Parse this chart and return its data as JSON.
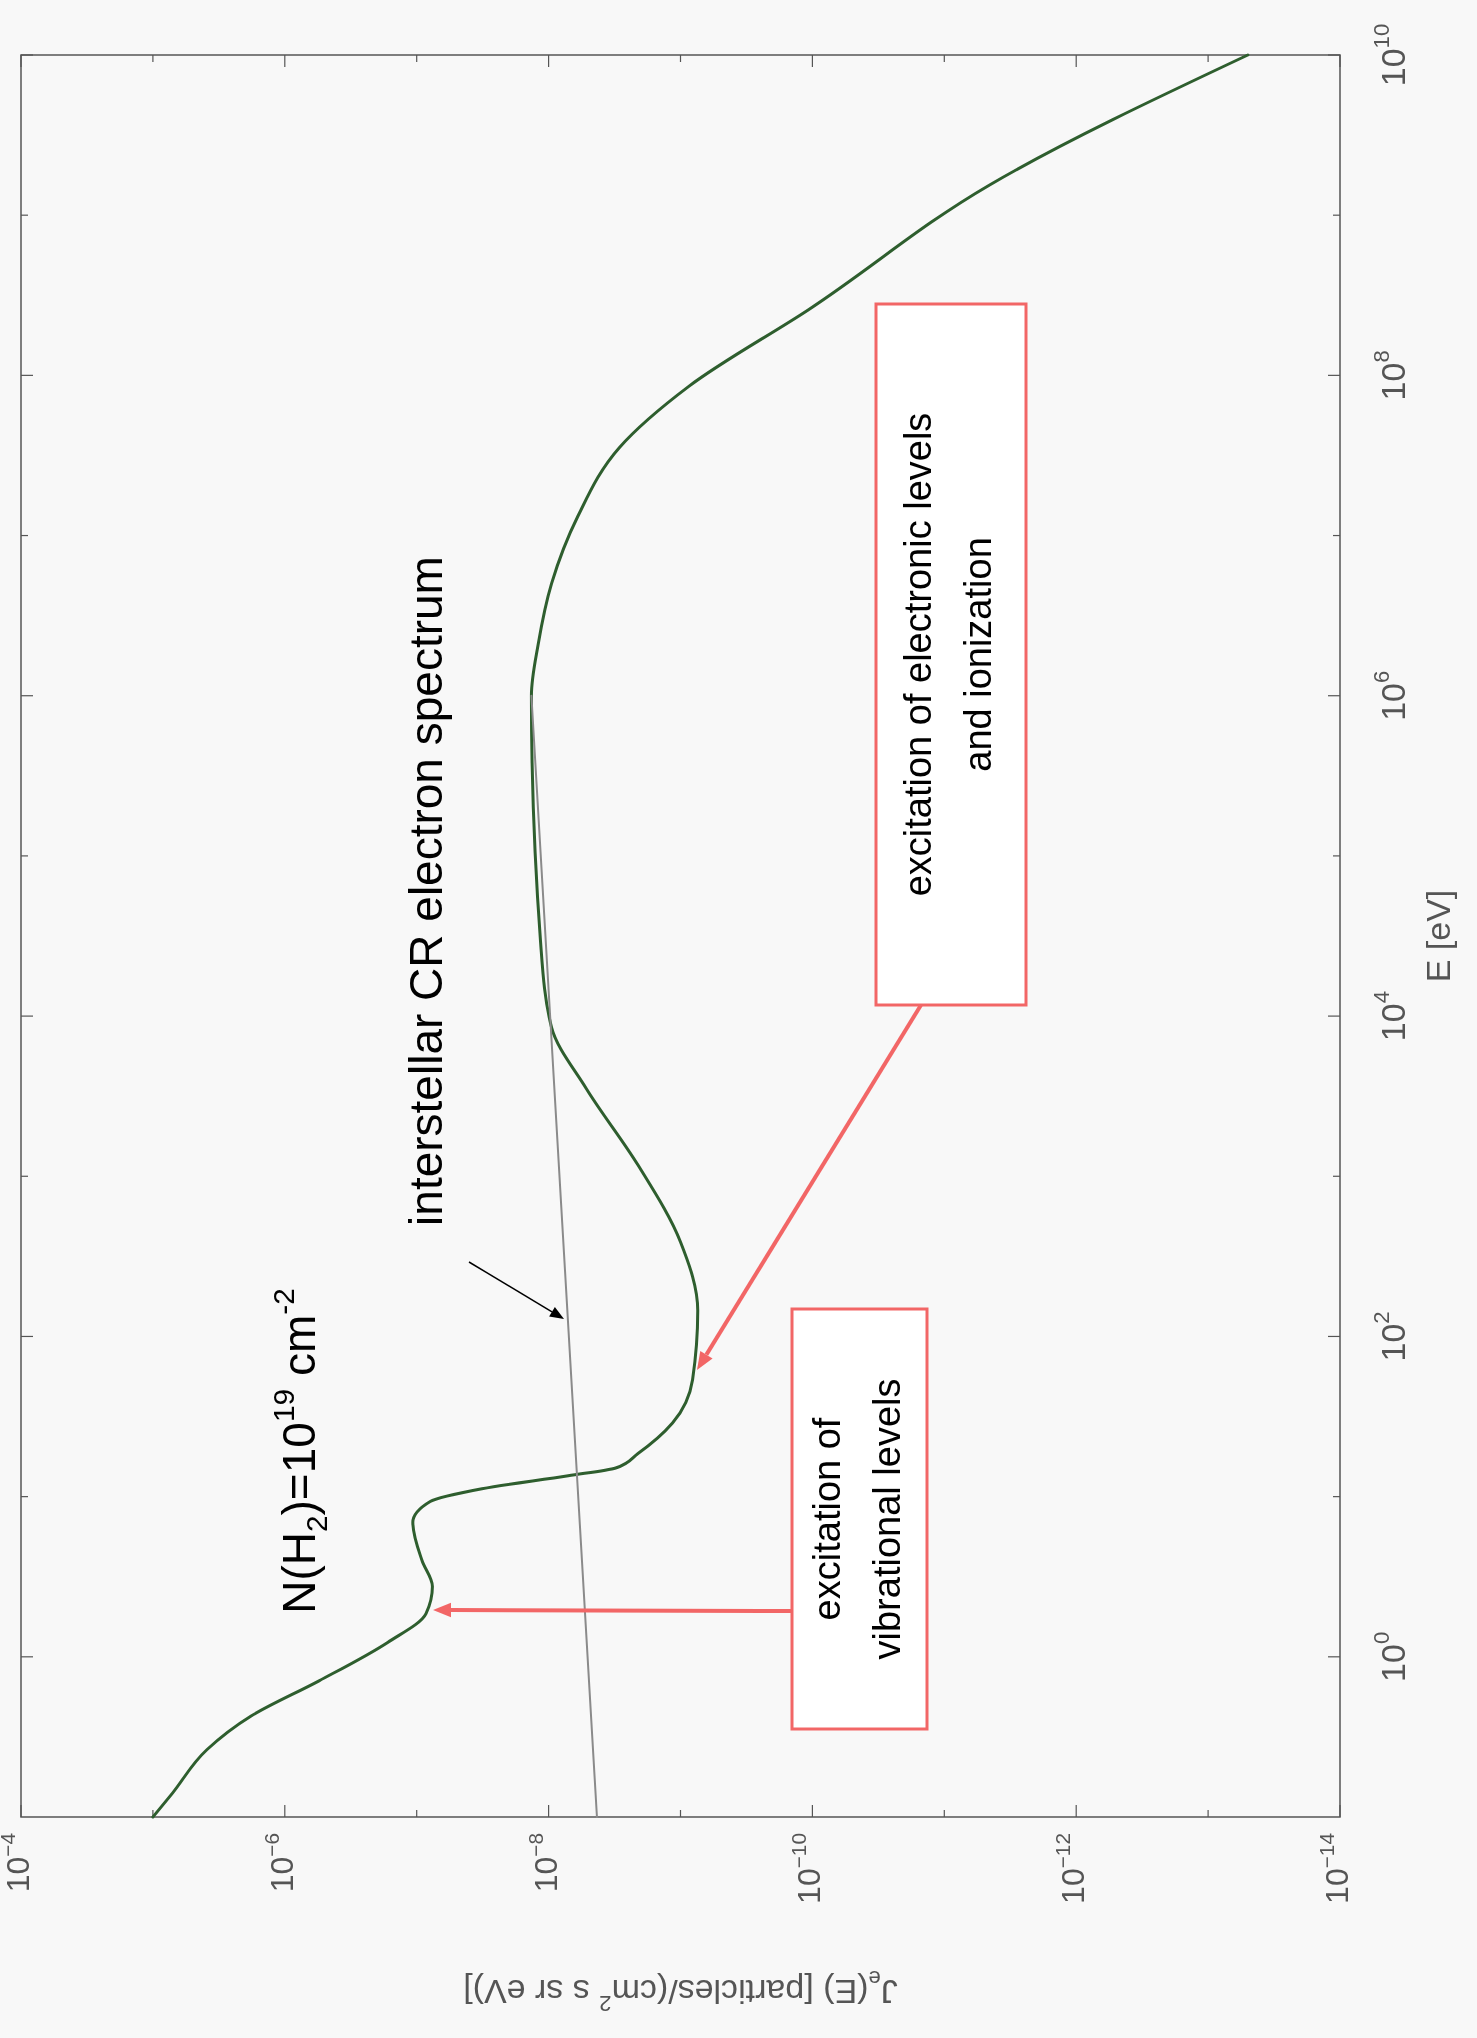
{
  "chart_data": {
    "type": "line",
    "xlabel": "J$_{e}$(E) [particles/(cm$^{2}$ s sr eV)]",
    "ylabel": "E [eV]",
    "log": "xy",
    "xlim": [
      0.0001,
      1e-14
    ],
    "ylim": [
      0.1,
      10000000000
    ],
    "xticks": [
      {
        "value": 0.0001,
        "label": "10$^{−4}$"
      },
      {
        "value": 1e-05,
        "label": null
      },
      {
        "value": 1e-06,
        "label": "10$^{−6}$"
      },
      {
        "value": 1e-07,
        "label": null
      },
      {
        "value": 1e-08,
        "label": "10$^{−8}$"
      },
      {
        "value": 1e-09,
        "label": null
      },
      {
        "value": 1e-10,
        "label": "10$^{−10}$"
      },
      {
        "value": 1e-11,
        "label": null
      },
      {
        "value": 1e-12,
        "label": "10$^{−12}$"
      },
      {
        "value": 1e-13,
        "label": null
      },
      {
        "value": 1e-14,
        "label": "10$^{−14}$"
      }
    ],
    "yticks": [
      {
        "value": 1,
        "label": "10$^{0}$"
      },
      {
        "value": 10,
        "label": null
      },
      {
        "value": 100,
        "label": "10$^{2}$"
      },
      {
        "value": 1000,
        "label": null
      },
      {
        "value": 10000,
        "label": "10$^{4}$"
      },
      {
        "value": 100000,
        "label": null
      },
      {
        "value": 1000000,
        "label": "10$^{6}$"
      },
      {
        "value": 10000000,
        "label": null
      },
      {
        "value": 100000000,
        "label": "10$^{8}$"
      },
      {
        "value": 1000000000,
        "label": null
      },
      {
        "value": 10000000000,
        "label": "10$^{10}$"
      }
    ],
    "grid": false,
    "series": [
      {
        "color": "#2e5e2e",
        "values": [
          0.1,
          0.141,
          0.263,
          0.427,
          0.708,
          1.23,
          1.86,
          2.75,
          3.98,
          6.92,
          9.33,
          11.2,
          13.5,
          15.1,
          18.6,
          28.8,
          53.7,
          145,
          389,
          1175,
          3548,
          8511,
          28840,
          1000000,
          2090000,
          5010000,
          13200000,
          35500000,
          85100000,
          257000000,
          1550000000,
          10000000000
        ],
        "x": [
          1e-05,
          7.1e-06,
          3.9e-06,
          1.8e-06,
          5.5e-07,
          1.66e-07,
          8.5e-08,
          7.6e-08,
          9.1e-08,
          1.07e-07,
          7.9e-08,
          3.2e-08,
          7.1e-09,
          3.1e-09,
          2.1e-09,
          1.15e-09,
          8.1e-10,
          7.4e-10,
          1e-09,
          2.1e-09,
          5.2e-09,
          9.5e-09,
          1.15e-08,
          1.35e-08,
          1.2e-08,
          9.5e-09,
          6e-09,
          2.9e-09,
          8.7e-10,
          1.07e-10,
          4.5e-12,
          5e-14
        ]
      },
      {
        "color": "#8a8a8a",
        "values": [
          0.1,
          1000000
        ],
        "x": [
          4.3e-09,
          1.35e-08
        ]
      }
    ],
    "annotations": [
      "N(H$_{2}$)=10$^{19}$ cm$^{-2}$",
      "interstellar CR electron spectrum",
      "excitation of electronic levels\nand ionization",
      "excitation of\nvibrational levels"
    ]
  }
}
